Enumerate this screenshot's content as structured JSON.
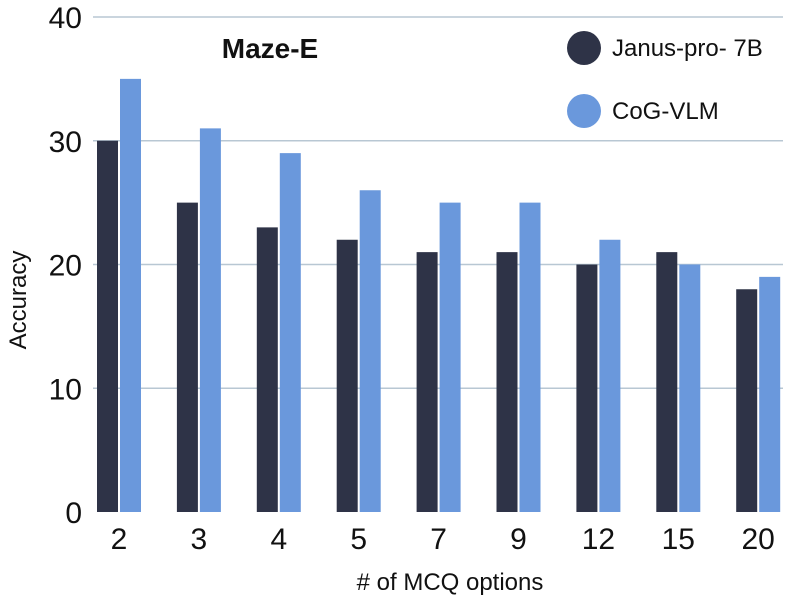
{
  "chart_data": {
    "type": "bar",
    "title": "Maze-E",
    "xlabel": "# of MCQ options",
    "ylabel": "Accuracy",
    "categories": [
      "2",
      "3",
      "4",
      "5",
      "7",
      "9",
      "12",
      "15",
      "20"
    ],
    "series": [
      {
        "name": "Janus-pro- 7B",
        "color": "#2e3347",
        "values": [
          30,
          25,
          23,
          22,
          21,
          21,
          20,
          21,
          18
        ]
      },
      {
        "name": "CoG-VLM",
        "color": "#6a98dc",
        "values": [
          35,
          31,
          29,
          26,
          25,
          25,
          22,
          20,
          19
        ]
      }
    ],
    "ylim": [
      0,
      40
    ],
    "yticks": [
      0,
      10,
      20,
      30,
      40
    ],
    "grid": true,
    "gridColor": "#b8c7d3",
    "legend": "top-right"
  }
}
